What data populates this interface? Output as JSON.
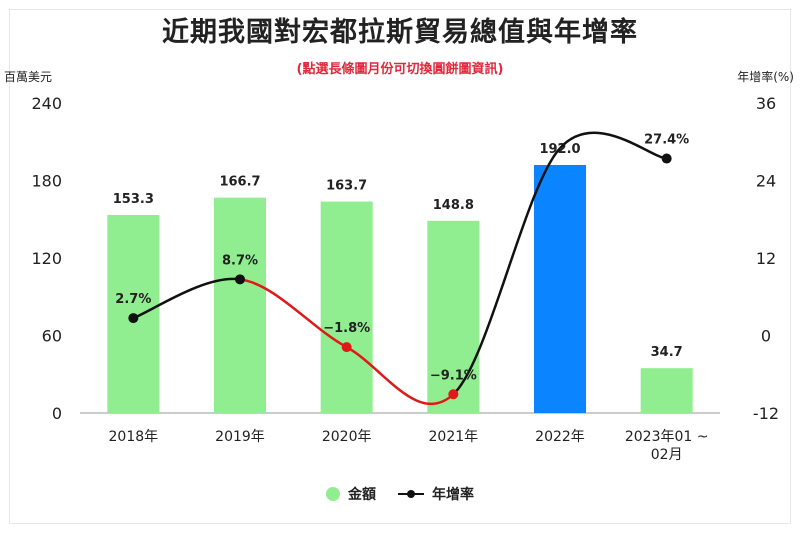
{
  "title": "近期我國對宏都拉斯貿易總值與年增率",
  "subtitle": "(點選長條圖月份可切換圓餅圖資訊)",
  "left_unit": "百萬美元",
  "right_unit": "年增率(%)",
  "colors": {
    "bar": "#90ee90",
    "bar_highlight": "#0a84ff",
    "line": "#111111",
    "line_negative": "#e01818"
  },
  "chart_data": {
    "type": "bar",
    "categories": [
      "2018年",
      "2019年",
      "2020年",
      "2021年",
      "2022年",
      "2023年01 ~ 02月"
    ],
    "category_lines": [
      [
        "2018年"
      ],
      [
        "2019年"
      ],
      [
        "2020年"
      ],
      [
        "2021年"
      ],
      [
        "2022年"
      ],
      [
        "2023年01 ~",
        "02月"
      ]
    ],
    "highlight_index": 4,
    "series": [
      {
        "name": "金額",
        "type": "bar",
        "axis": "left",
        "values": [
          153.3,
          166.7,
          163.7,
          148.8,
          192.0,
          34.7
        ],
        "labels": [
          "153.3",
          "166.7",
          "163.7",
          "148.8",
          "192.0",
          "34.7"
        ]
      },
      {
        "name": "年增率",
        "type": "line",
        "axis": "right",
        "values": [
          2.7,
          8.7,
          -1.8,
          -9.1,
          29.0,
          27.4
        ],
        "labels": [
          "2.7%",
          "8.7%",
          "−1.8%",
          "−9.1%",
          "",
          "27.4%"
        ]
      }
    ],
    "y_left": {
      "min": 0,
      "max": 240,
      "ticks": [
        "0",
        "60",
        "120",
        "180",
        "240"
      ]
    },
    "y_right": {
      "min": -12,
      "max": 36,
      "ticks": [
        "-12",
        "0",
        "12",
        "24",
        "36"
      ]
    },
    "grid": false,
    "legend_position": "bottom"
  }
}
